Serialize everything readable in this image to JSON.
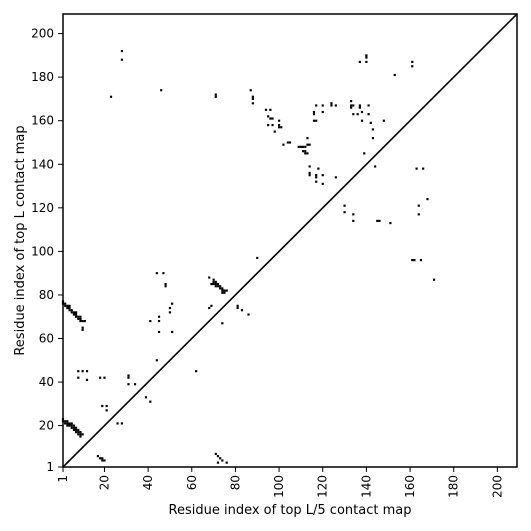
{
  "chart_data": {
    "type": "scatter",
    "title": "",
    "xlabel": "Residue index of top L/5 contact map",
    "ylabel": "Residue index of top L contact map",
    "xlim": [
      1,
      209
    ],
    "ylim": [
      1,
      209
    ],
    "x_ticks": [
      1,
      20,
      40,
      60,
      80,
      100,
      120,
      140,
      160,
      180,
      200
    ],
    "x_tick_labels": [
      "1",
      "20",
      "40",
      "60",
      "80",
      "100",
      "120",
      "140",
      "160",
      "180",
      "200"
    ],
    "y_ticks": [
      1,
      20,
      40,
      60,
      80,
      100,
      120,
      140,
      160,
      180,
      200
    ],
    "y_tick_labels": [
      "1",
      "20",
      "40",
      "60",
      "80",
      "100",
      "120",
      "140",
      "160",
      "180",
      "200"
    ],
    "tick_rotation_x": -90,
    "grid": false,
    "diagonal": true,
    "marker": "square",
    "marker_color": "#000000",
    "upper_left_points": [
      [
        1,
        77
      ],
      [
        1,
        76
      ],
      [
        2,
        76
      ],
      [
        2,
        75
      ],
      [
        3,
        75
      ],
      [
        3,
        74
      ],
      [
        4,
        75
      ],
      [
        4,
        74
      ],
      [
        4,
        73
      ],
      [
        5,
        73
      ],
      [
        5,
        72
      ],
      [
        6,
        72
      ],
      [
        6,
        71
      ],
      [
        7,
        72
      ],
      [
        7,
        71
      ],
      [
        7,
        70
      ],
      [
        8,
        70
      ],
      [
        8,
        69
      ],
      [
        9,
        70
      ],
      [
        9,
        69
      ],
      [
        9,
        68
      ],
      [
        10,
        68
      ],
      [
        11,
        68
      ],
      [
        10,
        65
      ],
      [
        10,
        64
      ],
      [
        8,
        45
      ],
      [
        10,
        45
      ],
      [
        12,
        45
      ],
      [
        8,
        42
      ],
      [
        12,
        41
      ],
      [
        18,
        42
      ],
      [
        20,
        42
      ],
      [
        19,
        29
      ],
      [
        21,
        29
      ],
      [
        21,
        27
      ],
      [
        28,
        192
      ],
      [
        28,
        188
      ],
      [
        23,
        171
      ],
      [
        31,
        43
      ],
      [
        31,
        42
      ],
      [
        31,
        39
      ],
      [
        34,
        39
      ],
      [
        39,
        33
      ],
      [
        41,
        31
      ],
      [
        44,
        90
      ],
      [
        47,
        90
      ],
      [
        46,
        174
      ],
      [
        45,
        70
      ],
      [
        45,
        68
      ],
      [
        48,
        85
      ],
      [
        48,
        84
      ],
      [
        50,
        74
      ],
      [
        50,
        72
      ],
      [
        51,
        76
      ],
      [
        51,
        63
      ],
      [
        45,
        63
      ],
      [
        44,
        50
      ],
      [
        41,
        68
      ],
      [
        62,
        45
      ],
      [
        68,
        88
      ],
      [
        69,
        75
      ],
      [
        68,
        74
      ],
      [
        69,
        85
      ],
      [
        70,
        87
      ],
      [
        70,
        86
      ],
      [
        70,
        85
      ],
      [
        71,
        86
      ],
      [
        71,
        85
      ],
      [
        71,
        84
      ],
      [
        72,
        85
      ],
      [
        72,
        84
      ],
      [
        73,
        84
      ],
      [
        73,
        83
      ],
      [
        74,
        83
      ],
      [
        74,
        82
      ],
      [
        75,
        82
      ],
      [
        74,
        81
      ],
      [
        75,
        81
      ],
      [
        76,
        82
      ],
      [
        74,
        67
      ],
      [
        71,
        172
      ],
      [
        71,
        171
      ],
      [
        81,
        75
      ],
      [
        81,
        74
      ],
      [
        83,
        73
      ],
      [
        86,
        71
      ],
      [
        87,
        174
      ],
      [
        88,
        171
      ],
      [
        88,
        168
      ],
      [
        88,
        170
      ],
      [
        90,
        97
      ],
      [
        94,
        165
      ],
      [
        95,
        162
      ],
      [
        96,
        161
      ],
      [
        96,
        165
      ],
      [
        97,
        161
      ],
      [
        95,
        158
      ],
      [
        97,
        158
      ],
      [
        98,
        155
      ],
      [
        100,
        160
      ],
      [
        100,
        158
      ],
      [
        100,
        157
      ],
      [
        101,
        157
      ],
      [
        102,
        149
      ],
      [
        104,
        150
      ],
      [
        105,
        150
      ],
      [
        109,
        148
      ],
      [
        110,
        148
      ],
      [
        111,
        148
      ],
      [
        111,
        146
      ],
      [
        112,
        146
      ],
      [
        112,
        145
      ],
      [
        113,
        145
      ],
      [
        112,
        148
      ],
      [
        113,
        152
      ],
      [
        113,
        149
      ],
      [
        114,
        149
      ],
      [
        114,
        139
      ],
      [
        114,
        136
      ],
      [
        114,
        135
      ],
      [
        116,
        164
      ],
      [
        116,
        163
      ],
      [
        116,
        160
      ],
      [
        117,
        160
      ],
      [
        117,
        167
      ],
      [
        117,
        135
      ],
      [
        117,
        134
      ],
      [
        117,
        132
      ],
      [
        118,
        138
      ],
      [
        120,
        167
      ],
      [
        120,
        164
      ],
      [
        120,
        135
      ],
      [
        120,
        131
      ],
      [
        124,
        168
      ],
      [
        124,
        167
      ],
      [
        126,
        167
      ],
      [
        126,
        134
      ],
      [
        130,
        121
      ],
      [
        130,
        118
      ],
      [
        133,
        169
      ],
      [
        133,
        167
      ],
      [
        133,
        166
      ],
      [
        134,
        167
      ],
      [
        134,
        163
      ],
      [
        134,
        117
      ],
      [
        134,
        114
      ],
      [
        136,
        163
      ],
      [
        137,
        166
      ],
      [
        137,
        167
      ],
      [
        137,
        187
      ],
      [
        138,
        164
      ],
      [
        138,
        160
      ],
      [
        139,
        145
      ],
      [
        140,
        190
      ],
      [
        140,
        189
      ],
      [
        140,
        187
      ],
      [
        141,
        167
      ],
      [
        141,
        163
      ],
      [
        142,
        159
      ],
      [
        143,
        156
      ],
      [
        143,
        152
      ],
      [
        144,
        139
      ],
      [
        145,
        114
      ],
      [
        146,
        114
      ],
      [
        148,
        160
      ],
      [
        151,
        113
      ],
      [
        153,
        181
      ],
      [
        161,
        187
      ],
      [
        161,
        185
      ],
      [
        161,
        96
      ],
      [
        162,
        96
      ],
      [
        163,
        138
      ],
      [
        164,
        121
      ],
      [
        164,
        117
      ],
      [
        165,
        96
      ],
      [
        166,
        138
      ],
      [
        168,
        124
      ],
      [
        171,
        87
      ]
    ],
    "lower_right_points": [
      [
        1,
        23
      ],
      [
        1,
        22
      ],
      [
        2,
        22
      ],
      [
        2,
        21
      ],
      [
        3,
        22
      ],
      [
        3,
        21
      ],
      [
        3,
        20
      ],
      [
        4,
        21
      ],
      [
        4,
        20
      ],
      [
        5,
        21
      ],
      [
        5,
        20
      ],
      [
        5,
        19
      ],
      [
        6,
        20
      ],
      [
        6,
        19
      ],
      [
        6,
        18
      ],
      [
        7,
        19
      ],
      [
        7,
        18
      ],
      [
        7,
        17
      ],
      [
        8,
        18
      ],
      [
        8,
        17
      ],
      [
        8,
        16
      ],
      [
        9,
        17
      ],
      [
        9,
        16
      ],
      [
        9,
        15
      ],
      [
        10,
        16
      ],
      [
        17,
        6
      ],
      [
        18,
        5
      ],
      [
        19,
        5
      ],
      [
        19,
        4
      ],
      [
        20,
        4
      ],
      [
        26,
        21
      ],
      [
        28,
        21
      ],
      [
        71,
        7
      ],
      [
        72,
        6
      ],
      [
        73,
        5
      ],
      [
        72,
        3
      ],
      [
        74,
        4
      ],
      [
        76,
        3
      ]
    ]
  }
}
